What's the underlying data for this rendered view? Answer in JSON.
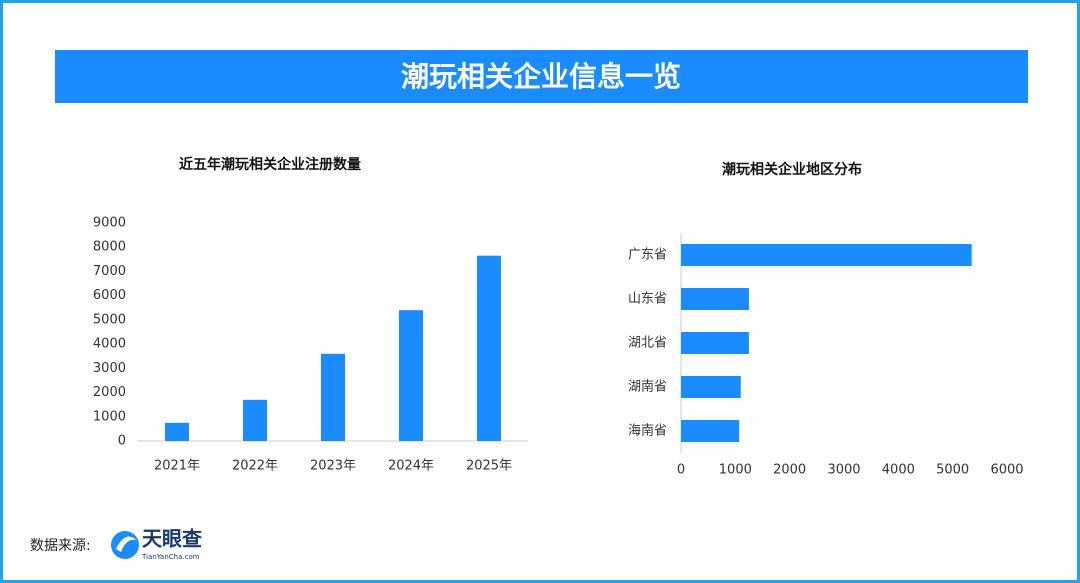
{
  "title": "潮玩相关企业信息一览",
  "source": {
    "label": "数据来源:",
    "logo_name": "天眼查",
    "logo_url": "TianYanCha.com"
  },
  "chart_data": [
    {
      "type": "bar",
      "title": "近五年潮玩相关企业注册数量",
      "categories": [
        "2021年",
        "2022年",
        "2023年",
        "2024年",
        "2025年"
      ],
      "values": [
        750,
        1700,
        3600,
        5400,
        7650
      ],
      "color": "#1a8cff",
      "ylim": [
        0,
        9000
      ],
      "yticks": [
        0,
        1000,
        2000,
        3000,
        4000,
        5000,
        6000,
        7000,
        8000,
        9000
      ],
      "grid": false
    },
    {
      "type": "bar",
      "horizontal": true,
      "title": "潮玩相关企业地区分布",
      "categories": [
        "广东省",
        "山东省",
        "湖北省",
        "湖南省",
        "海南省"
      ],
      "values": [
        5350,
        1250,
        1250,
        1100,
        1070
      ],
      "color": "#1a8cff",
      "xlim": [
        0,
        6000
      ],
      "xticks": [
        0,
        1000,
        2000,
        3000,
        4000,
        5000,
        6000
      ],
      "grid": false
    }
  ]
}
